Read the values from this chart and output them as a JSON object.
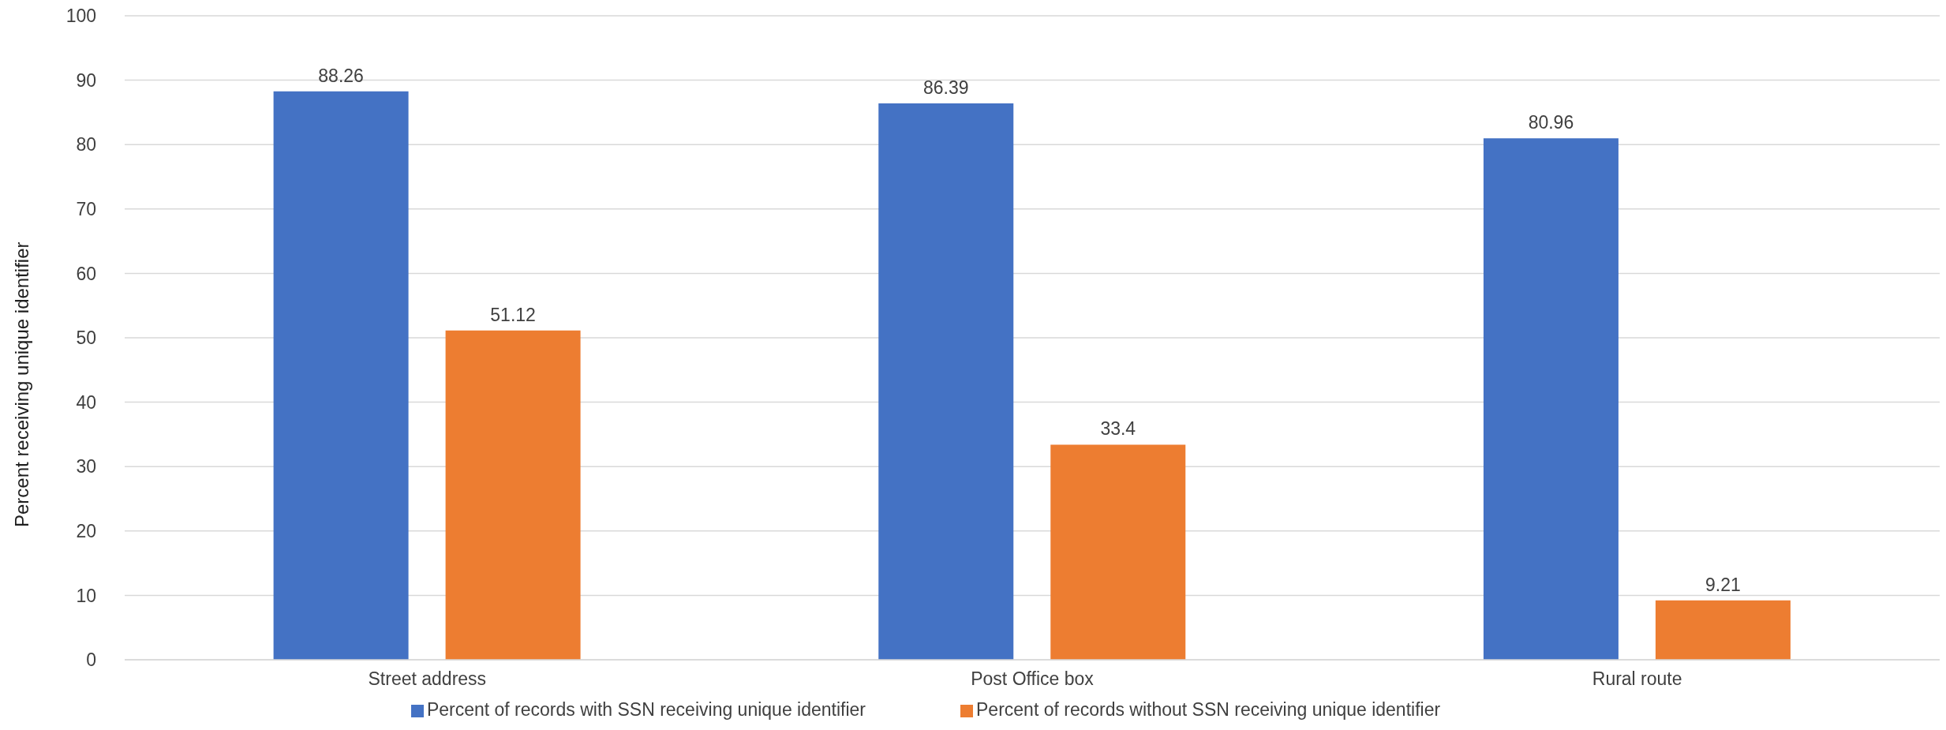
{
  "chart_data": {
    "type": "bar",
    "ylabel": "Percent receiving unique identifier",
    "categories": [
      "Street address",
      "Post Office box",
      "Rural route"
    ],
    "series": [
      {
        "name": "Percent of records with SSN receiving unique identifier",
        "color": "#4472c4",
        "values": [
          88.26,
          86.39,
          80.96
        ]
      },
      {
        "name": "Percent of records without SSN receiving unique identifier",
        "color": "#ed7d31",
        "values": [
          51.12,
          33.4,
          9.21
        ]
      }
    ],
    "ylim": [
      0,
      100
    ],
    "yticks": [
      0,
      10,
      20,
      30,
      40,
      50,
      60,
      70,
      80,
      90,
      100
    ],
    "grid": "y",
    "legend": "bottom",
    "data_labels": true
  }
}
